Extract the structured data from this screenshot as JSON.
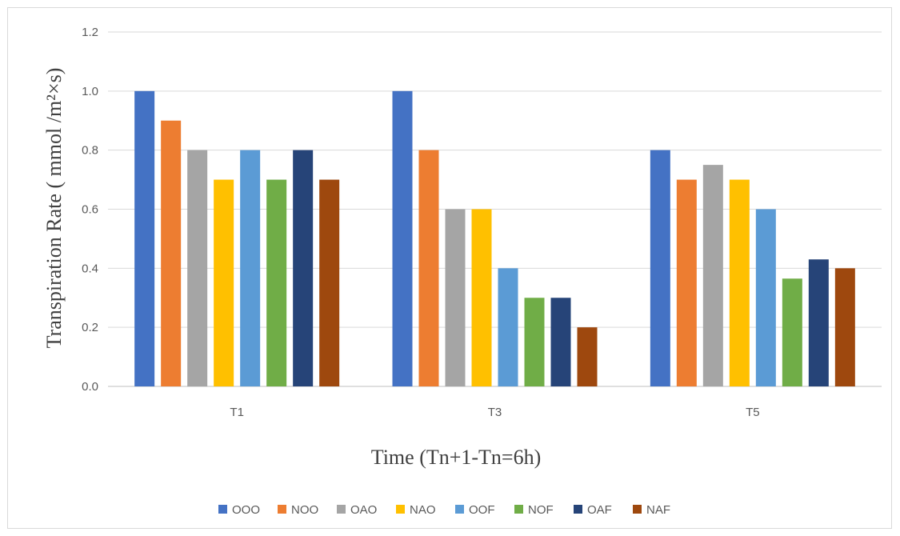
{
  "chart_data": {
    "type": "bar",
    "title": "",
    "xlabel": "Time (Tn+1-Tn=6h)",
    "ylabel": "Transpiration Rate ( mmol /m²×s)",
    "ylim": [
      0,
      1.2
    ],
    "yticks": [
      "0.0",
      "0.2",
      "0.4",
      "0.6",
      "0.8",
      "1.0",
      "1.2"
    ],
    "categories": [
      "T1",
      "T3",
      "T5"
    ],
    "grid": true,
    "legend_position": "bottom",
    "series": [
      {
        "name": "OOO",
        "color": "#4472C4",
        "values": [
          1.0,
          1.0,
          0.8
        ]
      },
      {
        "name": "NOO",
        "color": "#ED7D31",
        "values": [
          0.9,
          0.8,
          0.7
        ]
      },
      {
        "name": "OAO",
        "color": "#A5A5A5",
        "values": [
          0.8,
          0.6,
          0.75
        ]
      },
      {
        "name": "NAO",
        "color": "#FFC000",
        "values": [
          0.7,
          0.6,
          0.7
        ]
      },
      {
        "name": "OOF",
        "color": "#5B9BD5",
        "values": [
          0.8,
          0.4,
          0.6
        ]
      },
      {
        "name": "NOF",
        "color": "#70AD47",
        "values": [
          0.7,
          0.3,
          0.365
        ]
      },
      {
        "name": "OAF",
        "color": "#264478",
        "values": [
          0.8,
          0.3,
          0.43
        ]
      },
      {
        "name": "NAF",
        "color": "#9E480E",
        "values": [
          0.7,
          0.2,
          0.4
        ]
      }
    ]
  }
}
